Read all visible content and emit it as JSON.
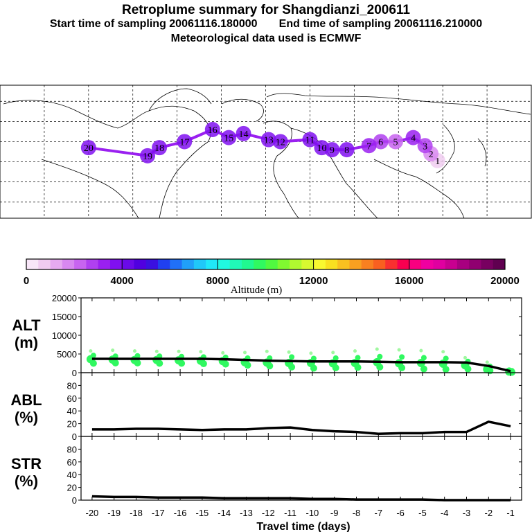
{
  "header": {
    "title": "Retroplume summary for Shangdianzi_200611",
    "start_label": "Start time of sampling 20061116.180000",
    "end_label": "End time of sampling 20061116.210000",
    "met_label": "Meteorological data used is ECMWF"
  },
  "colorbar": {
    "ticks": [
      "0",
      "4000",
      "8000",
      "12000",
      "16000",
      "20000"
    ],
    "label": "Altitude (m)",
    "colors": [
      "#f8e6f8",
      "#f0ccf0",
      "#e6aaf0",
      "#d888f0",
      "#c864f0",
      "#b040f0",
      "#9a20f0",
      "#8010f0",
      "#6a0ae8",
      "#5000e0",
      "#3a10e0",
      "#2040f0",
      "#2070f8",
      "#20a0f8",
      "#20c8f8",
      "#20e8f8",
      "#20f8e0",
      "#20f8b8",
      "#20f890",
      "#30f860",
      "#50f840",
      "#80f830",
      "#b0f830",
      "#d8f830",
      "#f8f830",
      "#f8e020",
      "#f8c020",
      "#f8a020",
      "#f88020",
      "#f86020",
      "#f83030",
      "#f80050",
      "#f80080",
      "#f000a0",
      "#e000a0",
      "#c80090",
      "#a80080",
      "#900070",
      "#780060",
      "#600050"
    ]
  },
  "map": {
    "track_color": "#9a20f0",
    "points": [
      {
        "label": "1",
        "lon": 116.5,
        "lat": 40.6,
        "alt": 500
      },
      {
        "label": "2",
        "lon": 112,
        "lat": 44,
        "alt": 1500
      },
      {
        "label": "3",
        "lon": 108,
        "lat": 48,
        "alt": 2500
      },
      {
        "label": "4",
        "lon": 100,
        "lat": 52,
        "alt": 3000
      },
      {
        "label": "5",
        "lon": 88,
        "lat": 50,
        "alt": 2000
      },
      {
        "label": "6",
        "lon": 78,
        "lat": 50,
        "alt": 2500
      },
      {
        "label": "7",
        "lon": 70,
        "lat": 48,
        "alt": 3000
      },
      {
        "label": "8",
        "lon": 55,
        "lat": 46,
        "alt": 3500
      },
      {
        "label": "9",
        "lon": 45,
        "lat": 46,
        "alt": 3500
      },
      {
        "label": "10",
        "lon": 38,
        "lat": 47,
        "alt": 3500
      },
      {
        "label": "11",
        "lon": 30,
        "lat": 51,
        "alt": 3500
      },
      {
        "label": "12",
        "lon": 10,
        "lat": 50,
        "alt": 3500
      },
      {
        "label": "13",
        "lon": 2,
        "lat": 51,
        "alt": 3500
      },
      {
        "label": "14",
        "lon": -15,
        "lat": 54,
        "alt": 3500
      },
      {
        "label": "15",
        "lon": -25,
        "lat": 52,
        "alt": 3500
      },
      {
        "label": "16",
        "lon": -36,
        "lat": 56,
        "alt": 3500
      },
      {
        "label": "17",
        "lon": -55,
        "lat": 50,
        "alt": 3500
      },
      {
        "label": "18",
        "lon": -72,
        "lat": 47,
        "alt": 3500
      },
      {
        "label": "19",
        "lon": -80,
        "lat": 43,
        "alt": 3500
      },
      {
        "label": "20",
        "lon": -120,
        "lat": 47,
        "alt": 3500
      }
    ]
  },
  "chart_data": [
    {
      "type": "line",
      "panel": "ALT",
      "title": "ALT",
      "ylabel": "(m)",
      "x": [
        -20,
        -19,
        -18,
        -17,
        -16,
        -15,
        -14,
        -13,
        -12,
        -11,
        -10,
        -9,
        -8,
        -7,
        -6,
        -5,
        -4,
        -3,
        -2,
        -1
      ],
      "values": [
        3700,
        3700,
        3700,
        3700,
        3700,
        3700,
        3600,
        3400,
        3200,
        3100,
        3000,
        3000,
        3000,
        2900,
        2800,
        2800,
        2800,
        2700,
        1800,
        400
      ],
      "ylim": [
        0,
        20000
      ],
      "yticks": [
        "0",
        "5000",
        "10000",
        "15000",
        "20000"
      ],
      "scatter_color": "#30f860",
      "scatter_color_light": "#a0f8a0",
      "scatter_spread": [
        [
          5800,
          4600,
          3600,
          2500
        ],
        [
          6000,
          4400,
          3500,
          2600
        ],
        [
          5800,
          4500,
          3400,
          2600
        ],
        [
          5700,
          4400,
          3400,
          2500
        ],
        [
          5700,
          4300,
          3300,
          2500
        ],
        [
          5600,
          4200,
          3200,
          2400
        ],
        [
          5300,
          4100,
          3100,
          2300
        ],
        [
          5400,
          3900,
          2800,
          2000
        ],
        [
          5700,
          3900,
          2700,
          1800
        ],
        [
          5500,
          4200,
          2600,
          1500
        ],
        [
          5200,
          3800,
          2600,
          1200
        ],
        [
          5400,
          3900,
          2500,
          1300
        ],
        [
          5800,
          4000,
          2600,
          1400
        ],
        [
          6300,
          4300,
          2800,
          1500
        ],
        [
          6100,
          4200,
          2500,
          1300
        ],
        [
          5900,
          4000,
          2600,
          1000
        ],
        [
          5600,
          3800,
          2400,
          900
        ],
        [
          4000,
          3000,
          2000,
          1000
        ],
        [
          2800,
          1700,
          900,
          500
        ],
        [
          900,
          500,
          300,
          100
        ]
      ]
    },
    {
      "type": "line",
      "panel": "ABL",
      "title": "ABL",
      "ylabel": "(%)",
      "x": [
        -20,
        -19,
        -18,
        -17,
        -16,
        -15,
        -14,
        -13,
        -12,
        -11,
        -10,
        -9,
        -8,
        -7,
        -6,
        -5,
        -4,
        -3,
        -2,
        -1
      ],
      "values": [
        11,
        11,
        12,
        12,
        11,
        10,
        11,
        11,
        13,
        14,
        10,
        8,
        7,
        4,
        5,
        5,
        7,
        7,
        23,
        16
      ],
      "ylim": [
        0,
        100
      ],
      "yticks": [
        "0",
        "20",
        "40",
        "60",
        "80"
      ]
    },
    {
      "type": "line",
      "panel": "STR",
      "title": "STR",
      "ylabel": "(%)",
      "x": [
        -20,
        -19,
        -18,
        -17,
        -16,
        -15,
        -14,
        -13,
        -12,
        -11,
        -10,
        -9,
        -8,
        -7,
        -6,
        -5,
        -4,
        -3,
        -2,
        -1
      ],
      "values": [
        6,
        5,
        5,
        4,
        4,
        4,
        3,
        3,
        3,
        3,
        2,
        2,
        1,
        1,
        1,
        1,
        0,
        0,
        0,
        0
      ],
      "ylim": [
        0,
        100
      ],
      "yticks": [
        "0",
        "20",
        "40",
        "60",
        "80"
      ],
      "xlabel": "Travel time (days)",
      "xticks": [
        "-20",
        "-19",
        "-18",
        "-17",
        "-16",
        "-15",
        "-14",
        "-13",
        "-12",
        "-11",
        "-10",
        "-9",
        "-8",
        "-7",
        "-6",
        "-5",
        "-4",
        "-3",
        "-2",
        "-1"
      ]
    }
  ]
}
